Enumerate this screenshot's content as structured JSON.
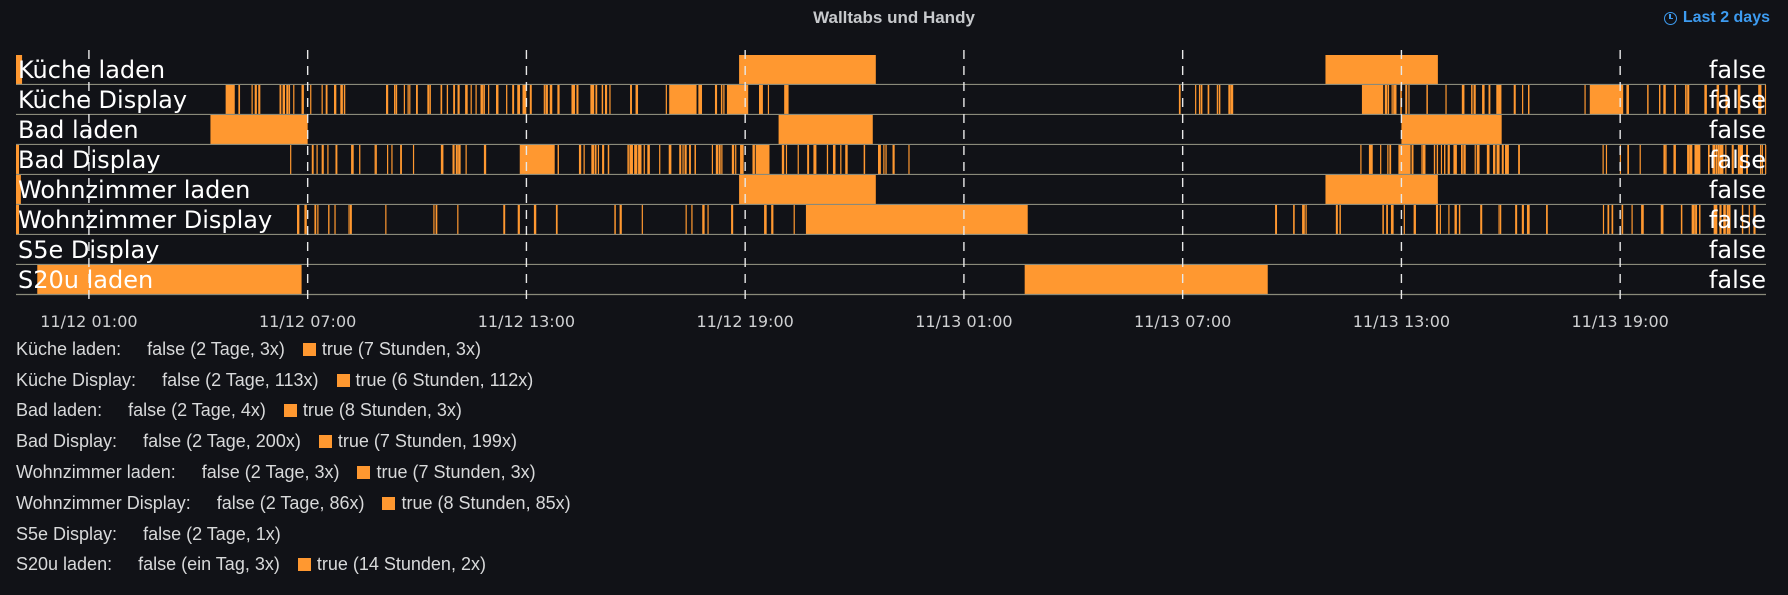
{
  "panel": {
    "title": "Walltabs und Handy",
    "time_range_label": "Last 2 days"
  },
  "colors": {
    "true": "#ff9830",
    "background": "#111217",
    "divider": "#8a8a7a"
  },
  "chart_data": {
    "type": "state-timeline",
    "x_range": [
      "11/11 23:00",
      "11/13 23:00"
    ],
    "x_ticks": [
      "11/12 01:00",
      "11/12 07:00",
      "11/12 13:00",
      "11/12 19:00",
      "11/13 01:00",
      "11/13 07:00",
      "11/13 13:00",
      "11/13 19:00"
    ],
    "grid": "vertical dashed at ticks",
    "series": [
      {
        "name": "Küche laden",
        "current": "false",
        "true_periods": [
          [
            "11/11 23:00",
            "11/11 23:10"
          ],
          [
            "11/12 18:50",
            "11/12 22:35"
          ],
          [
            "11/13 10:55",
            "11/13 14:00"
          ]
        ],
        "flicker_windows": []
      },
      {
        "name": "Küche Display",
        "current": "false",
        "true_periods": [
          [
            "11/12 04:45",
            "11/12 05:00"
          ],
          [
            "11/12 16:55",
            "11/12 17:40"
          ],
          [
            "11/12 18:30",
            "11/12 19:05"
          ],
          [
            "11/13 11:55",
            "11/13 12:30"
          ],
          [
            "11/13 18:10",
            "11/13 19:05"
          ]
        ],
        "flicker_windows": [
          [
            "11/12 04:50",
            "11/12 07:00",
            14
          ],
          [
            "11/12 07:00",
            "11/12 13:30",
            42
          ],
          [
            "11/12 13:30",
            "11/12 20:10",
            30
          ],
          [
            "11/13 06:00",
            "11/13 09:00",
            10
          ],
          [
            "11/13 11:50",
            "11/13 16:30",
            26
          ],
          [
            "11/13 18:00",
            "11/13 23:00",
            18
          ]
        ]
      },
      {
        "name": "Bad laden",
        "current": "false",
        "true_periods": [
          [
            "11/12 04:20",
            "11/12 07:00"
          ],
          [
            "11/12 19:55",
            "11/12 22:30"
          ],
          [
            "11/13 13:00",
            "11/13 15:45"
          ]
        ],
        "flicker_windows": []
      },
      {
        "name": "Bad Display",
        "current": "false",
        "true_periods": [
          [
            "11/11 23:00",
            "11/11 23:05"
          ],
          [
            "11/12 12:50",
            "11/12 13:45"
          ],
          [
            "11/12 19:20",
            "11/12 19:40"
          ],
          [
            "11/13 12:55",
            "11/13 13:15"
          ]
        ],
        "flicker_windows": [
          [
            "11/12 06:30",
            "11/12 20:00",
            70
          ],
          [
            "11/12 20:00",
            "11/12 23:30",
            18
          ],
          [
            "11/13 11:40",
            "11/13 16:30",
            36
          ],
          [
            "11/13 18:00",
            "11/13 23:00",
            32
          ]
        ]
      },
      {
        "name": "Wohnzimmer laden",
        "current": "false",
        "true_periods": [
          [
            "11/11 23:00",
            "11/11 23:08"
          ],
          [
            "11/12 18:50",
            "11/12 22:35"
          ],
          [
            "11/13 10:55",
            "11/13 14:00"
          ]
        ],
        "flicker_windows": []
      },
      {
        "name": "Wohnzimmer Display",
        "current": "false",
        "true_periods": [
          [
            "11/11 23:00",
            "11/11 23:05"
          ],
          [
            "11/12 20:40",
            "11/13 02:45"
          ]
        ],
        "flicker_windows": [
          [
            "11/12 06:30",
            "11/12 21:00",
            30
          ],
          [
            "11/13 09:00",
            "11/13 17:00",
            26
          ],
          [
            "11/13 18:30",
            "11/13 23:00",
            24
          ]
        ]
      },
      {
        "name": "S5e Display",
        "current": "false",
        "true_periods": [],
        "flicker_windows": []
      },
      {
        "name": "S20u laden",
        "current": "false",
        "true_periods": [
          [
            "11/11 23:35",
            "11/12 06:50"
          ],
          [
            "11/13 02:40",
            "11/13 09:20"
          ]
        ],
        "flicker_windows": []
      }
    ]
  },
  "legend": [
    {
      "name": "Küche laden:",
      "false_text": "false (2 Tage, 3x)",
      "true_text": "true (7 Stunden, 3x)"
    },
    {
      "name": "Küche Display:",
      "false_text": "false (2 Tage, 113x)",
      "true_text": "true (6 Stunden, 112x)"
    },
    {
      "name": "Bad laden:",
      "false_text": "false (2 Tage, 4x)",
      "true_text": "true (8 Stunden, 3x)"
    },
    {
      "name": "Bad Display:",
      "false_text": "false (2 Tage, 200x)",
      "true_text": "true (7 Stunden, 199x)"
    },
    {
      "name": "Wohnzimmer laden:",
      "false_text": "false (2 Tage, 3x)",
      "true_text": "true (7 Stunden, 3x)"
    },
    {
      "name": "Wohnzimmer Display:",
      "false_text": "false (2 Tage, 86x)",
      "true_text": "true (8 Stunden, 85x)"
    },
    {
      "name": "S5e Display:",
      "false_text": "false (2 Tage, 1x)",
      "true_text": ""
    },
    {
      "name": "S20u laden:",
      "false_text": "false (ein Tag, 3x)",
      "true_text": "true (14 Stunden, 2x)"
    }
  ]
}
